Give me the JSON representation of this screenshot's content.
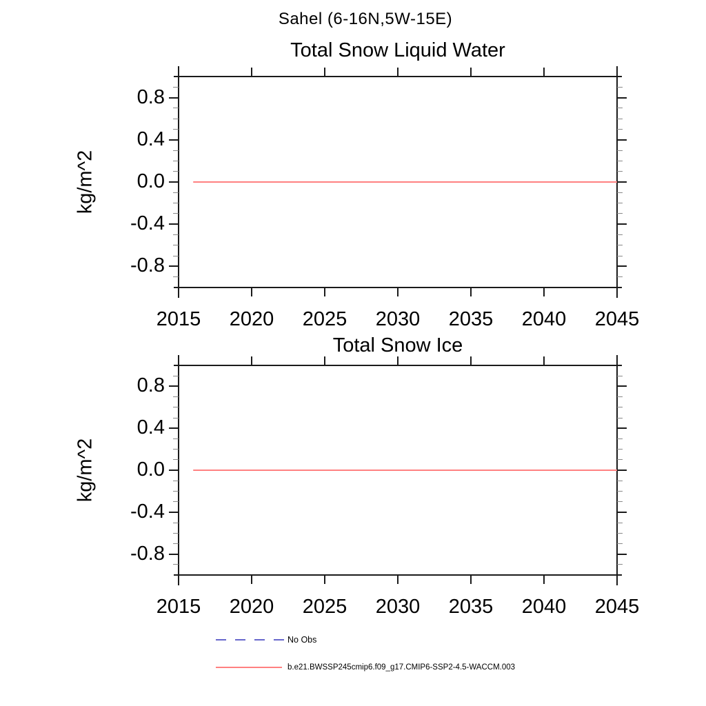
{
  "figure": {
    "suptitle": "Sahel (6-16N,5W-15E)",
    "background_color": "#ffffff",
    "axis_color": "#1a1a1a",
    "minor_tick_color": "#888888"
  },
  "chart_data": [
    {
      "type": "line",
      "title": "Total Snow Liquid Water",
      "xlabel": "",
      "ylabel": "kg/m^2",
      "xlim": [
        2015,
        2045
      ],
      "ylim": [
        -1.0,
        1.0
      ],
      "x_ticks": [
        2015,
        2020,
        2025,
        2030,
        2035,
        2040,
        2045
      ],
      "y_major_ticks": [
        0.8,
        0.4,
        0.0,
        -0.4,
        -0.8
      ],
      "y_minor_step": 0.1,
      "grid": false,
      "legend_position": "bottom-left",
      "series": [
        {
          "name": "b.e21.BWSSP245cmip6.f09_g17.CMIP6-SSP2-4.5-WACCM.003",
          "color": "#ff8080",
          "style": "solid",
          "x": [
            2016,
            2045
          ],
          "values": [
            0.0,
            0.0
          ]
        }
      ]
    },
    {
      "type": "line",
      "title": "Total Snow Ice",
      "xlabel": "",
      "ylabel": "kg/m^2",
      "xlim": [
        2015,
        2045
      ],
      "ylim": [
        -1.0,
        1.0
      ],
      "x_ticks": [
        2015,
        2020,
        2025,
        2030,
        2035,
        2040,
        2045
      ],
      "y_major_ticks": [
        0.8,
        0.4,
        0.0,
        -0.4,
        -0.8
      ],
      "y_minor_step": 0.1,
      "grid": false,
      "series": [
        {
          "name": "b.e21.BWSSP245cmip6.f09_g17.CMIP6-SSP2-4.5-WACCM.003",
          "color": "#ff8080",
          "style": "solid",
          "x": [
            2016,
            2045
          ],
          "values": [
            0.0,
            0.0
          ]
        }
      ]
    }
  ],
  "legend": {
    "items": [
      {
        "label": "No Obs",
        "color": "#6666cc",
        "style": "dashed"
      },
      {
        "label": "b.e21.BWSSP245cmip6.f09_g17.CMIP6-SSP2-4.5-WACCM.003",
        "color": "#ff8080",
        "style": "solid"
      }
    ]
  }
}
